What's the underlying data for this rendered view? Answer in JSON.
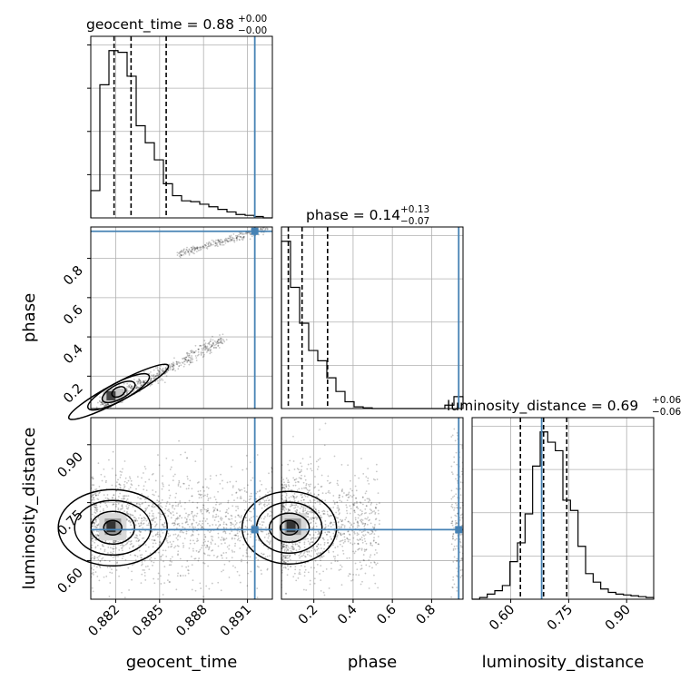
{
  "chart_data": {
    "type": "corner",
    "parameters": [
      {
        "name": "geocent_time",
        "median": "0.88",
        "plus": "+0.00",
        "minus": "−0.00",
        "truth": 0.8915,
        "range": [
          0.8803,
          0.8927
        ],
        "quantiles": [
          0.88189,
          0.88305,
          0.88545
        ],
        "ticks": [
          0.882,
          0.885,
          0.888,
          0.891
        ],
        "tick_labels": [
          "0.882",
          "0.885",
          "0.888",
          "0.891"
        ],
        "hist": [
          0.16,
          0.78,
          0.98,
          0.97,
          0.83,
          0.54,
          0.44,
          0.34,
          0.2,
          0.13,
          0.1,
          0.095,
          0.08,
          0.065,
          0.05,
          0.035,
          0.02,
          0.015,
          0.008,
          0.0
        ]
      },
      {
        "name": "phase",
        "median": "0.14",
        "plus": "+0.13",
        "minus": "−0.07",
        "truth": 0.938,
        "range": [
          0.035,
          0.96
        ],
        "quantiles": [
          0.07,
          0.14,
          0.27
        ],
        "ticks": [
          0.2,
          0.4,
          0.6,
          0.8
        ],
        "tick_labels": [
          "0.2",
          "0.4",
          "0.6",
          "0.8"
        ],
        "hist": [
          0.98,
          0.71,
          0.5,
          0.34,
          0.28,
          0.18,
          0.1,
          0.04,
          0.01,
          0.004,
          0.0,
          0.0,
          0.0,
          0.0,
          0.0,
          0.0,
          0.0,
          0.0,
          0.02,
          0.07
        ]
      },
      {
        "name": "luminosity_distance",
        "median": "0.69",
        "plus": "+0.06",
        "minus": "−0.06",
        "truth": 0.68,
        "range": [
          0.5,
          0.97
        ],
        "quantiles": [
          0.625,
          0.685,
          0.745
        ],
        "ticks": [
          0.6,
          0.75,
          0.9
        ],
        "tick_labels": [
          "0.60",
          "0.75",
          "0.90"
        ],
        "hist": [
          0.0,
          0.01,
          0.03,
          0.05,
          0.08,
          0.22,
          0.33,
          0.5,
          0.78,
          0.98,
          0.92,
          0.87,
          0.58,
          0.52,
          0.31,
          0.15,
          0.1,
          0.06,
          0.04,
          0.03,
          0.025,
          0.02,
          0.015,
          0.01
        ]
      }
    ],
    "truth_color": "#4682b4",
    "grid": true
  }
}
